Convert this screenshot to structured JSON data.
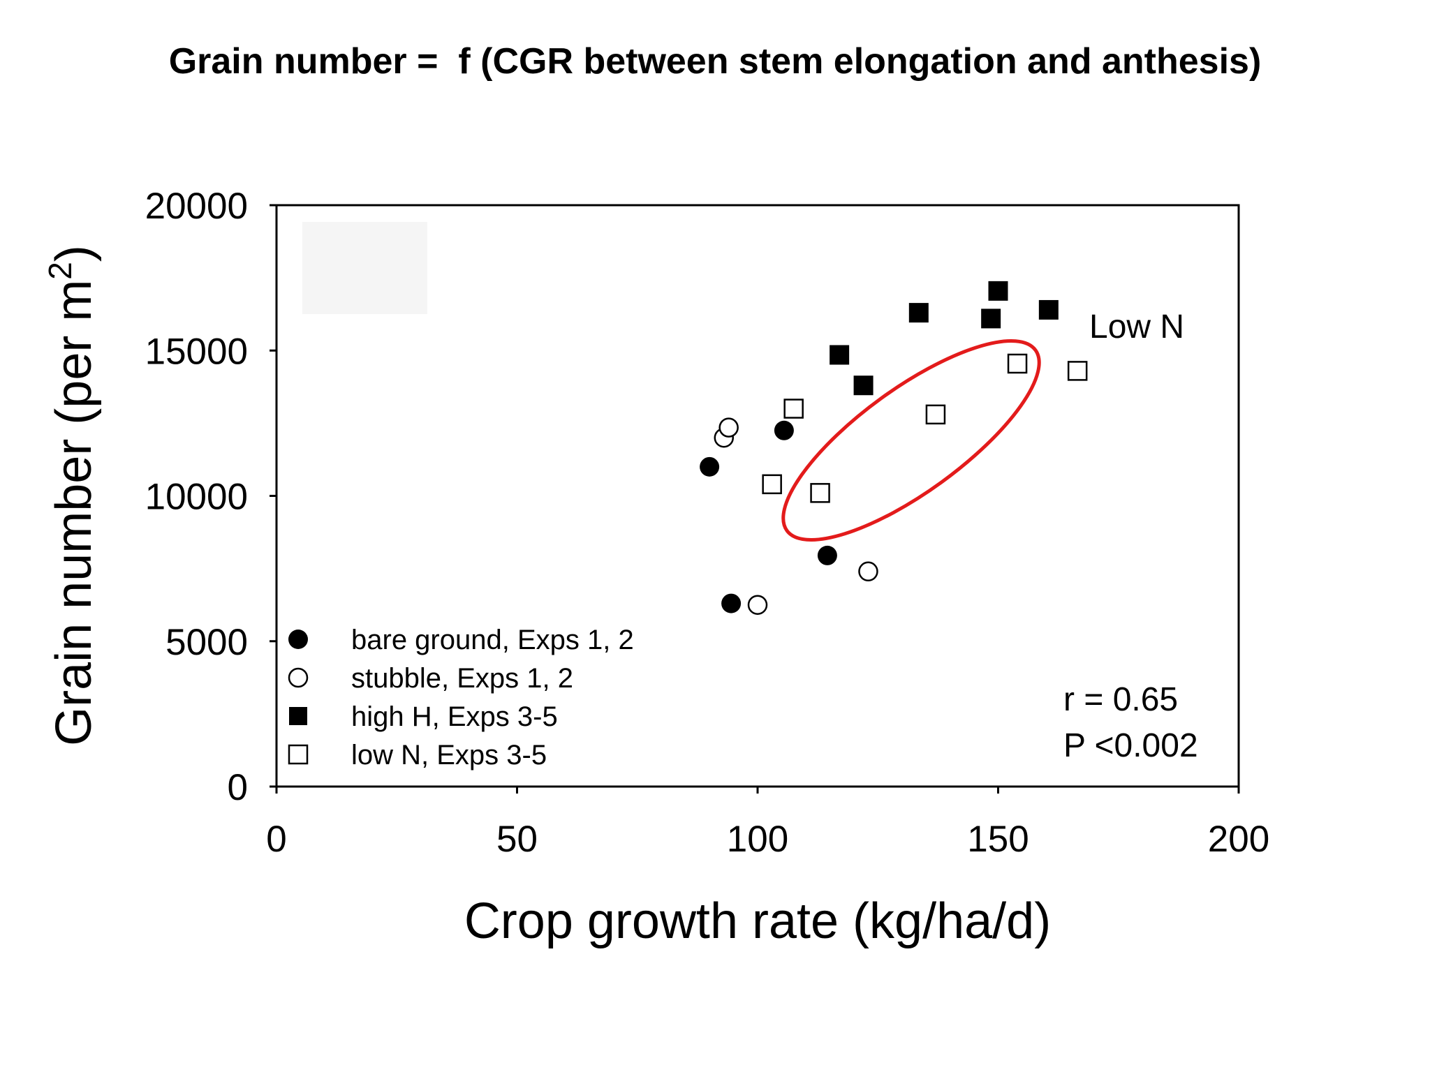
{
  "slide_title": "Grain number =  f (CGR between stem elongation and anthesis)",
  "chart_data": {
    "type": "scatter",
    "xlabel": "Crop growth rate (kg/ha/d)",
    "ylabel": "Grain number (per m",
    "ylabel_superscript": "2",
    "ylabel_suffix": ")",
    "xlim": [
      0,
      200
    ],
    "ylim": [
      0,
      20000
    ],
    "x_ticks": [
      0,
      50,
      100,
      150,
      200
    ],
    "y_ticks": [
      0,
      5000,
      10000,
      15000,
      20000
    ],
    "x_tick_labels": [
      "0",
      "50",
      "100",
      "150",
      "200"
    ],
    "y_tick_labels": [
      "0",
      "5000",
      "10000",
      "15000",
      "20000"
    ],
    "grid": false,
    "legend_position": "bottom-left",
    "series": [
      {
        "name": "bare ground, Exps 1, 2",
        "marker": "filled-circle",
        "x": [
          90,
          94.5,
          105.5,
          114.5
        ],
        "y": [
          11000,
          6300,
          12250,
          7950
        ]
      },
      {
        "name": "stubble, Exps 1, 2",
        "marker": "open-circle",
        "x": [
          93,
          94,
          100,
          123
        ],
        "y": [
          12000,
          12350,
          6250,
          7400
        ]
      },
      {
        "name": "high H, Exps 3-5",
        "marker": "filled-square",
        "x": [
          117,
          122,
          133.5,
          148.5,
          150,
          160.5
        ],
        "y": [
          14850,
          13800,
          16300,
          16100,
          17050,
          16400
        ]
      },
      {
        "name": "low N, Exps 3-5",
        "marker": "open-square",
        "x": [
          103,
          107.5,
          113,
          137,
          154,
          166.5
        ],
        "y": [
          10400,
          13000,
          10100,
          12800,
          14550,
          14300
        ]
      }
    ],
    "annotations": {
      "ellipse_label": "Low N",
      "stats_r": "r = 0.65",
      "stats_p": "P <0.002"
    },
    "colors": {
      "ellipse": "#e31b1b",
      "markers": "#000000"
    }
  }
}
